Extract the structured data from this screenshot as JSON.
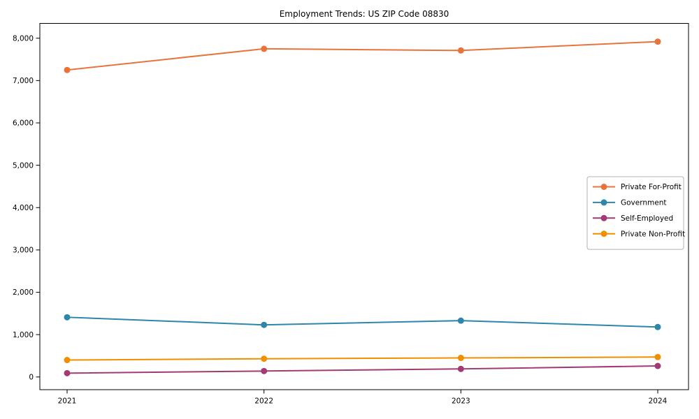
{
  "chart_data": {
    "type": "line",
    "title": "Employment Trends: US ZIP Code 08830",
    "xlabel": "",
    "ylabel": "",
    "x": [
      "2021",
      "2022",
      "2023",
      "2024"
    ],
    "series": [
      {
        "name": "Private For-Profit",
        "color": "#E8743B",
        "values": [
          7250,
          7750,
          7710,
          7920
        ]
      },
      {
        "name": "Government",
        "color": "#2E86AB",
        "values": [
          1410,
          1230,
          1330,
          1180
        ]
      },
      {
        "name": "Self-Employed",
        "color": "#A23B72",
        "values": [
          90,
          140,
          190,
          260
        ]
      },
      {
        "name": "Private Non-Profit",
        "color": "#F18F01",
        "values": [
          400,
          430,
          450,
          470
        ]
      }
    ],
    "yticks": [
      0,
      1000,
      2000,
      3000,
      4000,
      5000,
      6000,
      7000,
      8000
    ],
    "ytick_labels": [
      "0",
      "1,000",
      "2,000",
      "3,000",
      "4,000",
      "5,000",
      "6,000",
      "7,000",
      "8,000"
    ],
    "ylim": [
      -300,
      8350
    ],
    "grid": false,
    "legend_position": "center-right",
    "marker": "circle"
  }
}
